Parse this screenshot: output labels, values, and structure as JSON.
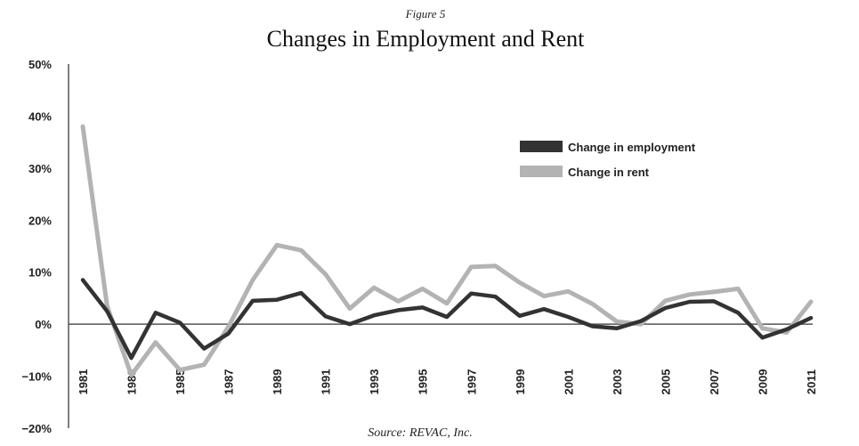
{
  "figure_label": "Figure 5",
  "source": "Source: REVAC, Inc.",
  "chart_data": {
    "type": "line",
    "title": "Changes in Employment and Rent",
    "xlabel": "",
    "ylabel": "",
    "ylim": [
      -20,
      50
    ],
    "yticks": [
      -20,
      -10,
      0,
      10,
      20,
      30,
      40,
      50
    ],
    "ytick_labels": [
      "−20%",
      "−10%",
      "0%",
      "10%",
      "20%",
      "30%",
      "40%",
      "50%"
    ],
    "xticks": [
      1981,
      1983,
      1985,
      1987,
      1989,
      1991,
      1993,
      1995,
      1997,
      1999,
      2001,
      2003,
      2005,
      2007,
      2009,
      2011
    ],
    "x": [
      1981,
      1982,
      1983,
      1984,
      1985,
      1986,
      1987,
      1988,
      1989,
      1990,
      1991,
      1992,
      1993,
      1994,
      1995,
      1996,
      1997,
      1998,
      1999,
      2000,
      2001,
      2002,
      2003,
      2004,
      2005,
      2006,
      2007,
      2008,
      2009,
      2010,
      2011
    ],
    "grid": false,
    "legend_position": "upper-right",
    "series": [
      {
        "name": "Change in employment",
        "color": "#333333",
        "values": [
          8.5,
          2.5,
          -6.5,
          2.2,
          0.3,
          -4.7,
          -1.8,
          4.5,
          4.7,
          6.0,
          1.5,
          0.0,
          1.7,
          2.7,
          3.2,
          1.4,
          5.9,
          5.3,
          1.6,
          2.9,
          1.4,
          -0.4,
          -0.8,
          0.6,
          3.1,
          4.3,
          4.4,
          2.2,
          -2.6,
          -1.0,
          1.2
        ]
      },
      {
        "name": "Change in rent",
        "color": "#b3b3b3",
        "values": [
          38.0,
          3.5,
          -9.8,
          -3.5,
          -8.8,
          -7.8,
          -0.5,
          8.5,
          15.2,
          14.2,
          9.6,
          3.0,
          7.0,
          4.4,
          6.8,
          4.0,
          11.0,
          11.2,
          8.0,
          5.4,
          6.3,
          3.9,
          0.5,
          0.0,
          4.5,
          5.7,
          6.2,
          6.8,
          -0.8,
          -1.6,
          4.3
        ]
      }
    ]
  }
}
